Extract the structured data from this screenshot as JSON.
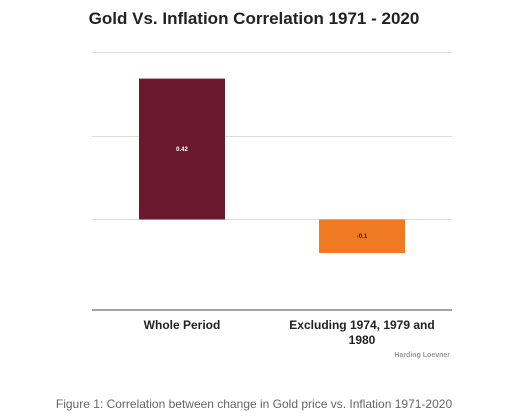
{
  "chart_data": {
    "type": "bar",
    "title": "Gold Vs. Inflation Correlation 1971 - 2020",
    "categories": [
      [
        "Whole Period"
      ],
      [
        "Excluding 1974, 1979 and",
        "1980"
      ]
    ],
    "values": [
      0.42,
      -0.1
    ],
    "data_labels": [
      "0.42",
      "-0.1"
    ],
    "bar_colors": [
      "#6b1a2e",
      "#f07a22"
    ],
    "ylim": [
      -0.27,
      0.55
    ],
    "gridlines": [
      0.5,
      0.25,
      0
    ],
    "grid": true,
    "source_note": "Harding Loevner"
  },
  "caption": "Figure 1: Correlation between change in Gold price vs. Inflation 1971-2020"
}
